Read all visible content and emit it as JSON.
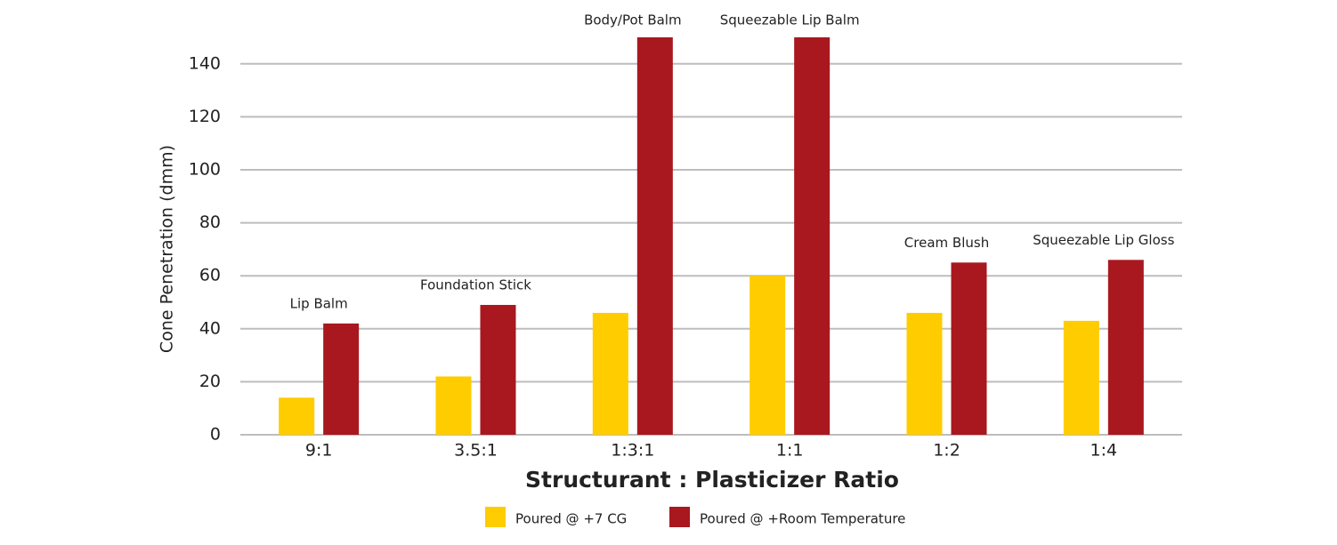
{
  "chart_data": {
    "type": "bar",
    "x_label": "Structurant : Plasticizer Ratio",
    "y_label": "Cone Penetration (dmm)",
    "categories": [
      "9:1",
      "3.5:1",
      "1:3:1",
      "1:1",
      "1:2",
      "1:4"
    ],
    "annotations": [
      "Lip Balm",
      "Foundation Stick",
      "Body/Pot Balm",
      "Squeezable Lip Balm",
      "Cream Blush",
      "Squeezable Lip Gloss"
    ],
    "series": [
      {
        "name": "Poured @ +7 CG",
        "color": "#ffcc00",
        "values": [
          14,
          22,
          46,
          60,
          46,
          43
        ]
      },
      {
        "name": "Poured @ +Room Temperature",
        "color": "#a8181e",
        "values": [
          42,
          49,
          150,
          150,
          65,
          66
        ]
      }
    ],
    "ylim": [
      0,
      150
    ],
    "yticks": [
      0,
      20,
      40,
      60,
      80,
      100,
      120,
      140
    ],
    "grid": true,
    "legend": "bottom"
  }
}
